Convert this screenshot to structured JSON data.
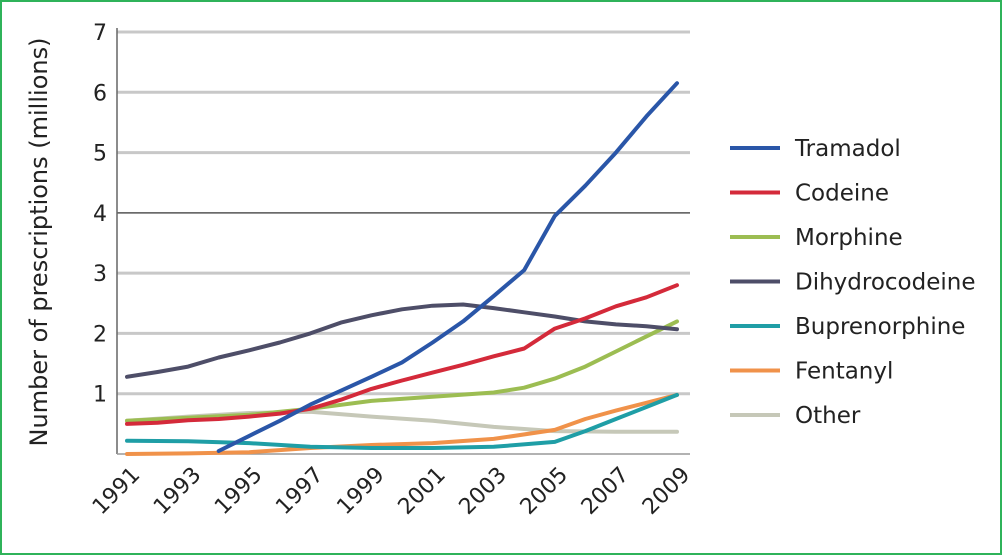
{
  "chart_data": {
    "type": "line",
    "ylabel": "Number of prescriptions (millions)",
    "xlabel": "",
    "ylim": [
      0,
      7
    ],
    "xlim": [
      1991,
      2009
    ],
    "y_ticks": [
      1,
      2,
      3,
      4,
      5,
      6,
      7
    ],
    "x_ticks": [
      "1991",
      "1993",
      "1995",
      "1997",
      "1999",
      "2001",
      "2003",
      "2005",
      "2007",
      "2009"
    ],
    "grid": "horizontal",
    "legend_position": "right",
    "series": [
      {
        "name": "Tramadol",
        "color": "#2a56a8",
        "points": [
          [
            1994,
            0.05
          ],
          [
            1995,
            0.3
          ],
          [
            1996,
            0.55
          ],
          [
            1997,
            0.82
          ],
          [
            1998,
            1.05
          ],
          [
            1999,
            1.28
          ],
          [
            2000,
            1.52
          ],
          [
            2001,
            1.85
          ],
          [
            2002,
            2.2
          ],
          [
            2003,
            2.62
          ],
          [
            2004,
            3.05
          ],
          [
            2005,
            3.95
          ],
          [
            2006,
            4.45
          ],
          [
            2007,
            5.0
          ],
          [
            2008,
            5.6
          ],
          [
            2009,
            6.15
          ]
        ]
      },
      {
        "name": "Codeine",
        "color": "#d42a3a",
        "points": [
          [
            1991,
            0.5
          ],
          [
            1992,
            0.52
          ],
          [
            1993,
            0.56
          ],
          [
            1994,
            0.58
          ],
          [
            1995,
            0.62
          ],
          [
            1996,
            0.67
          ],
          [
            1997,
            0.75
          ],
          [
            1998,
            0.9
          ],
          [
            1999,
            1.08
          ],
          [
            2000,
            1.22
          ],
          [
            2001,
            1.35
          ],
          [
            2002,
            1.48
          ],
          [
            2003,
            1.62
          ],
          [
            2004,
            1.75
          ],
          [
            2005,
            2.08
          ],
          [
            2006,
            2.25
          ],
          [
            2007,
            2.45
          ],
          [
            2008,
            2.6
          ],
          [
            2009,
            2.8
          ]
        ]
      },
      {
        "name": "Morphine",
        "color": "#9cbd52",
        "points": [
          [
            1991,
            0.55
          ],
          [
            1993,
            0.6
          ],
          [
            1995,
            0.65
          ],
          [
            1997,
            0.75
          ],
          [
            1999,
            0.88
          ],
          [
            2001,
            0.95
          ],
          [
            2003,
            1.02
          ],
          [
            2004,
            1.1
          ],
          [
            2005,
            1.25
          ],
          [
            2006,
            1.45
          ],
          [
            2007,
            1.7
          ],
          [
            2008,
            1.95
          ],
          [
            2009,
            2.2
          ]
        ]
      },
      {
        "name": "Dihydrocodeine",
        "color": "#4e4e68",
        "points": [
          [
            1991,
            1.28
          ],
          [
            1992,
            1.36
          ],
          [
            1993,
            1.45
          ],
          [
            1994,
            1.6
          ],
          [
            1995,
            1.72
          ],
          [
            1996,
            1.85
          ],
          [
            1997,
            2.0
          ],
          [
            1998,
            2.18
          ],
          [
            1999,
            2.3
          ],
          [
            2000,
            2.4
          ],
          [
            2001,
            2.46
          ],
          [
            2002,
            2.48
          ],
          [
            2003,
            2.42
          ],
          [
            2004,
            2.35
          ],
          [
            2005,
            2.28
          ],
          [
            2006,
            2.2
          ],
          [
            2007,
            2.15
          ],
          [
            2008,
            2.12
          ],
          [
            2009,
            2.07
          ]
        ]
      },
      {
        "name": "Buprenorphine",
        "color": "#1f9ea6",
        "points": [
          [
            1991,
            0.22
          ],
          [
            1993,
            0.21
          ],
          [
            1995,
            0.18
          ],
          [
            1997,
            0.12
          ],
          [
            1999,
            0.1
          ],
          [
            2001,
            0.1
          ],
          [
            2003,
            0.12
          ],
          [
            2005,
            0.2
          ],
          [
            2006,
            0.38
          ],
          [
            2007,
            0.58
          ],
          [
            2008,
            0.78
          ],
          [
            2009,
            0.98
          ]
        ]
      },
      {
        "name": "Fentanyl",
        "color": "#f0924a",
        "points": [
          [
            1991,
            0.0
          ],
          [
            1993,
            0.01
          ],
          [
            1995,
            0.03
          ],
          [
            1997,
            0.1
          ],
          [
            1999,
            0.15
          ],
          [
            2001,
            0.18
          ],
          [
            2003,
            0.25
          ],
          [
            2005,
            0.4
          ],
          [
            2006,
            0.58
          ],
          [
            2007,
            0.72
          ],
          [
            2008,
            0.85
          ],
          [
            2009,
            0.98
          ]
        ]
      },
      {
        "name": "Other",
        "color": "#c6c8b8",
        "points": [
          [
            1991,
            0.55
          ],
          [
            1993,
            0.62
          ],
          [
            1995,
            0.68
          ],
          [
            1997,
            0.7
          ],
          [
            1999,
            0.62
          ],
          [
            2001,
            0.55
          ],
          [
            2003,
            0.45
          ],
          [
            2005,
            0.38
          ],
          [
            2007,
            0.37
          ],
          [
            2009,
            0.37
          ]
        ]
      }
    ]
  }
}
